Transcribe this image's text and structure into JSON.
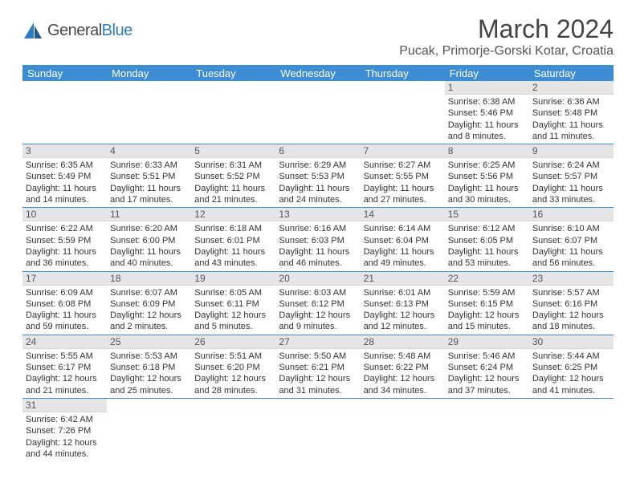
{
  "brand": {
    "part1": "General",
    "part2": "Blue"
  },
  "title": "March 2024",
  "location": "Pucak, Primorje-Gorski Kotar, Croatia",
  "colors": {
    "header_bg": "#3d8dd4",
    "daynum_bg": "#e5e5e5",
    "brand_blue": "#2e7cc4"
  },
  "weekdays": [
    "Sunday",
    "Monday",
    "Tuesday",
    "Wednesday",
    "Thursday",
    "Friday",
    "Saturday"
  ],
  "weeks": [
    [
      null,
      null,
      null,
      null,
      null,
      {
        "n": "1",
        "sr": "Sunrise: 6:38 AM",
        "ss": "Sunset: 5:46 PM",
        "d1": "Daylight: 11 hours",
        "d2": "and 8 minutes."
      },
      {
        "n": "2",
        "sr": "Sunrise: 6:36 AM",
        "ss": "Sunset: 5:48 PM",
        "d1": "Daylight: 11 hours",
        "d2": "and 11 minutes."
      }
    ],
    [
      {
        "n": "3",
        "sr": "Sunrise: 6:35 AM",
        "ss": "Sunset: 5:49 PM",
        "d1": "Daylight: 11 hours",
        "d2": "and 14 minutes."
      },
      {
        "n": "4",
        "sr": "Sunrise: 6:33 AM",
        "ss": "Sunset: 5:51 PM",
        "d1": "Daylight: 11 hours",
        "d2": "and 17 minutes."
      },
      {
        "n": "5",
        "sr": "Sunrise: 6:31 AM",
        "ss": "Sunset: 5:52 PM",
        "d1": "Daylight: 11 hours",
        "d2": "and 21 minutes."
      },
      {
        "n": "6",
        "sr": "Sunrise: 6:29 AM",
        "ss": "Sunset: 5:53 PM",
        "d1": "Daylight: 11 hours",
        "d2": "and 24 minutes."
      },
      {
        "n": "7",
        "sr": "Sunrise: 6:27 AM",
        "ss": "Sunset: 5:55 PM",
        "d1": "Daylight: 11 hours",
        "d2": "and 27 minutes."
      },
      {
        "n": "8",
        "sr": "Sunrise: 6:25 AM",
        "ss": "Sunset: 5:56 PM",
        "d1": "Daylight: 11 hours",
        "d2": "and 30 minutes."
      },
      {
        "n": "9",
        "sr": "Sunrise: 6:24 AM",
        "ss": "Sunset: 5:57 PM",
        "d1": "Daylight: 11 hours",
        "d2": "and 33 minutes."
      }
    ],
    [
      {
        "n": "10",
        "sr": "Sunrise: 6:22 AM",
        "ss": "Sunset: 5:59 PM",
        "d1": "Daylight: 11 hours",
        "d2": "and 36 minutes."
      },
      {
        "n": "11",
        "sr": "Sunrise: 6:20 AM",
        "ss": "Sunset: 6:00 PM",
        "d1": "Daylight: 11 hours",
        "d2": "and 40 minutes."
      },
      {
        "n": "12",
        "sr": "Sunrise: 6:18 AM",
        "ss": "Sunset: 6:01 PM",
        "d1": "Daylight: 11 hours",
        "d2": "and 43 minutes."
      },
      {
        "n": "13",
        "sr": "Sunrise: 6:16 AM",
        "ss": "Sunset: 6:03 PM",
        "d1": "Daylight: 11 hours",
        "d2": "and 46 minutes."
      },
      {
        "n": "14",
        "sr": "Sunrise: 6:14 AM",
        "ss": "Sunset: 6:04 PM",
        "d1": "Daylight: 11 hours",
        "d2": "and 49 minutes."
      },
      {
        "n": "15",
        "sr": "Sunrise: 6:12 AM",
        "ss": "Sunset: 6:05 PM",
        "d1": "Daylight: 11 hours",
        "d2": "and 53 minutes."
      },
      {
        "n": "16",
        "sr": "Sunrise: 6:10 AM",
        "ss": "Sunset: 6:07 PM",
        "d1": "Daylight: 11 hours",
        "d2": "and 56 minutes."
      }
    ],
    [
      {
        "n": "17",
        "sr": "Sunrise: 6:09 AM",
        "ss": "Sunset: 6:08 PM",
        "d1": "Daylight: 11 hours",
        "d2": "and 59 minutes."
      },
      {
        "n": "18",
        "sr": "Sunrise: 6:07 AM",
        "ss": "Sunset: 6:09 PM",
        "d1": "Daylight: 12 hours",
        "d2": "and 2 minutes."
      },
      {
        "n": "19",
        "sr": "Sunrise: 6:05 AM",
        "ss": "Sunset: 6:11 PM",
        "d1": "Daylight: 12 hours",
        "d2": "and 5 minutes."
      },
      {
        "n": "20",
        "sr": "Sunrise: 6:03 AM",
        "ss": "Sunset: 6:12 PM",
        "d1": "Daylight: 12 hours",
        "d2": "and 9 minutes."
      },
      {
        "n": "21",
        "sr": "Sunrise: 6:01 AM",
        "ss": "Sunset: 6:13 PM",
        "d1": "Daylight: 12 hours",
        "d2": "and 12 minutes."
      },
      {
        "n": "22",
        "sr": "Sunrise: 5:59 AM",
        "ss": "Sunset: 6:15 PM",
        "d1": "Daylight: 12 hours",
        "d2": "and 15 minutes."
      },
      {
        "n": "23",
        "sr": "Sunrise: 5:57 AM",
        "ss": "Sunset: 6:16 PM",
        "d1": "Daylight: 12 hours",
        "d2": "and 18 minutes."
      }
    ],
    [
      {
        "n": "24",
        "sr": "Sunrise: 5:55 AM",
        "ss": "Sunset: 6:17 PM",
        "d1": "Daylight: 12 hours",
        "d2": "and 21 minutes."
      },
      {
        "n": "25",
        "sr": "Sunrise: 5:53 AM",
        "ss": "Sunset: 6:18 PM",
        "d1": "Daylight: 12 hours",
        "d2": "and 25 minutes."
      },
      {
        "n": "26",
        "sr": "Sunrise: 5:51 AM",
        "ss": "Sunset: 6:20 PM",
        "d1": "Daylight: 12 hours",
        "d2": "and 28 minutes."
      },
      {
        "n": "27",
        "sr": "Sunrise: 5:50 AM",
        "ss": "Sunset: 6:21 PM",
        "d1": "Daylight: 12 hours",
        "d2": "and 31 minutes."
      },
      {
        "n": "28",
        "sr": "Sunrise: 5:48 AM",
        "ss": "Sunset: 6:22 PM",
        "d1": "Daylight: 12 hours",
        "d2": "and 34 minutes."
      },
      {
        "n": "29",
        "sr": "Sunrise: 5:46 AM",
        "ss": "Sunset: 6:24 PM",
        "d1": "Daylight: 12 hours",
        "d2": "and 37 minutes."
      },
      {
        "n": "30",
        "sr": "Sunrise: 5:44 AM",
        "ss": "Sunset: 6:25 PM",
        "d1": "Daylight: 12 hours",
        "d2": "and 41 minutes."
      }
    ],
    [
      {
        "n": "31",
        "sr": "Sunrise: 6:42 AM",
        "ss": "Sunset: 7:26 PM",
        "d1": "Daylight: 12 hours",
        "d2": "and 44 minutes."
      },
      null,
      null,
      null,
      null,
      null,
      null
    ]
  ]
}
